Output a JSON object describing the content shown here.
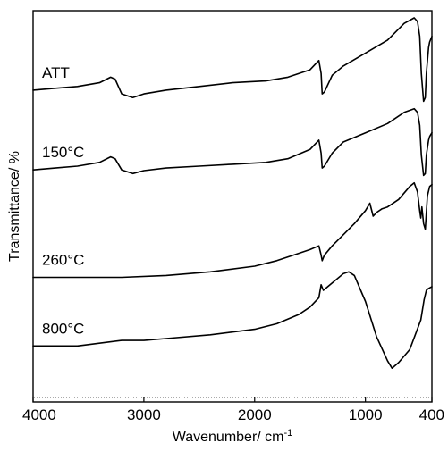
{
  "chart_data": {
    "type": "line",
    "xlabel": "Wavenumber/ cm",
    "xlabel_superscript": "-1",
    "ylabel": "Transmittance/ %",
    "xlim": [
      4000,
      400
    ],
    "x_reversed": true,
    "x_ticks": [
      4000,
      3000,
      2000,
      1000,
      400
    ],
    "ylim": [
      0,
      100
    ],
    "y_ticks": [],
    "grid": false,
    "legend": "none",
    "series": [
      {
        "name": "ATT",
        "x": [
          4000,
          3800,
          3600,
          3400,
          3300,
          3260,
          3200,
          3100,
          3000,
          2800,
          2500,
          2200,
          1900,
          1700,
          1500,
          1420,
          1400,
          1390,
          1370,
          1300,
          1200,
          1000,
          800,
          650,
          560,
          530,
          510,
          495,
          475,
          460,
          450,
          430,
          420,
          400
        ],
        "y": [
          80.5,
          81.0,
          81.5,
          82.5,
          84.0,
          83.5,
          79.5,
          78.5,
          79.5,
          80.5,
          81.5,
          82.5,
          83.0,
          84.0,
          86.0,
          88.5,
          85.0,
          79.5,
          80.0,
          84.5,
          87.0,
          90.5,
          94.0,
          98.5,
          100.0,
          99.0,
          95.0,
          85.0,
          77.5,
          78.5,
          85.0,
          92.0,
          93.5,
          95.0
        ]
      },
      {
        "name": "150°C",
        "x": [
          4000,
          3800,
          3600,
          3400,
          3300,
          3260,
          3200,
          3100,
          3000,
          2800,
          2500,
          2200,
          1900,
          1700,
          1500,
          1420,
          1400,
          1390,
          1370,
          1300,
          1200,
          1000,
          800,
          650,
          560,
          530,
          510,
          495,
          475,
          460,
          450,
          430,
          420,
          400
        ],
        "y": [
          59.0,
          59.5,
          60.0,
          61.0,
          62.5,
          62.0,
          59.0,
          58.0,
          58.8,
          59.5,
          60.0,
          60.5,
          61.0,
          62.0,
          64.5,
          67.0,
          63.5,
          59.5,
          60.0,
          63.5,
          66.5,
          69.0,
          71.5,
          74.5,
          75.5,
          74.5,
          71.0,
          63.0,
          57.5,
          58.0,
          63.0,
          67.0,
          68.0,
          69.0
        ]
      },
      {
        "name": "260°C",
        "x": [
          4000,
          3600,
          3200,
          2800,
          2400,
          2000,
          1800,
          1650,
          1500,
          1420,
          1400,
          1390,
          1370,
          1300,
          1200,
          1100,
          1000,
          960,
          930,
          900,
          850,
          800,
          700,
          600,
          560,
          530,
          510,
          500,
          490,
          475,
          460,
          440,
          420,
          400
        ],
        "y": [
          30.0,
          30.0,
          30.0,
          30.5,
          31.5,
          33.0,
          34.5,
          36.0,
          37.5,
          38.5,
          36.0,
          34.5,
          36.0,
          38.5,
          41.5,
          44.5,
          48.0,
          50.0,
          46.5,
          47.5,
          48.5,
          49.0,
          51.0,
          54.5,
          55.5,
          53.0,
          48.0,
          46.0,
          49.0,
          44.5,
          43.0,
          52.0,
          54.5,
          55.0
        ]
      },
      {
        "name": "800°C",
        "x": [
          4000,
          3600,
          3200,
          3000,
          2800,
          2400,
          2000,
          1800,
          1600,
          1500,
          1420,
          1400,
          1380,
          1300,
          1200,
          1150,
          1100,
          1000,
          900,
          800,
          760,
          740,
          700,
          600,
          500,
          470,
          450,
          430,
          400
        ],
        "y": [
          11.5,
          11.5,
          13.0,
          13.0,
          13.5,
          14.5,
          16.0,
          17.5,
          20.0,
          22.0,
          24.5,
          28.0,
          26.5,
          28.5,
          31.0,
          31.5,
          30.5,
          23.5,
          14.0,
          7.5,
          5.5,
          6.0,
          7.0,
          10.5,
          18.5,
          24.0,
          26.5,
          27.0,
          27.5
        ]
      }
    ],
    "labels": [
      "ATT",
      "150°C",
      "260°C",
      "800°C"
    ]
  }
}
